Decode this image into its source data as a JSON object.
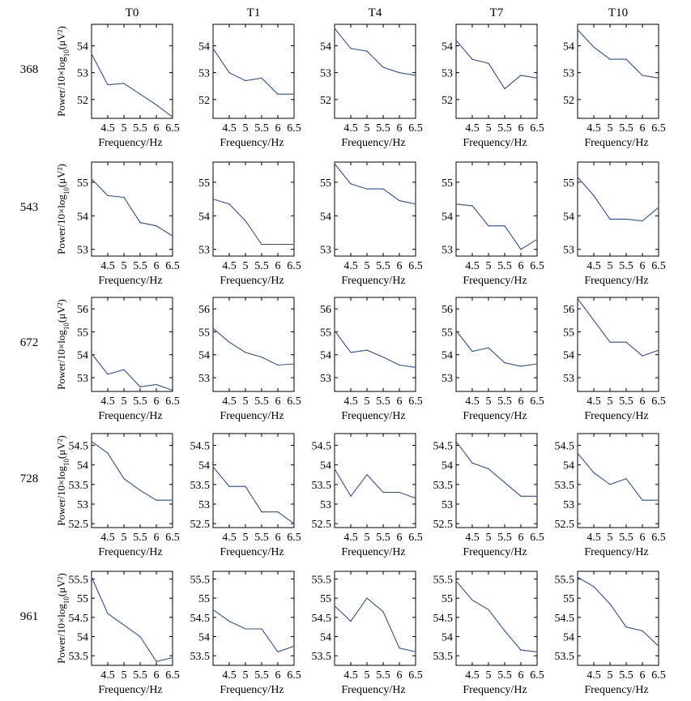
{
  "columns": [
    "T0",
    "T1",
    "T4",
    "T7",
    "T10"
  ],
  "rows": [
    "368",
    "543",
    "672",
    "728",
    "961"
  ],
  "xlabel": "Frequency/Hz",
  "ylabel": "Power/10×log10(μV²)",
  "line_color": "#2f4f8f",
  "chart_data": [
    {
      "type": "line",
      "row": "368",
      "xlim": [
        4,
        6.5
      ],
      "ylim": [
        51.3,
        54.8
      ],
      "yticks": [
        "52",
        "53",
        "54"
      ],
      "xticks": [
        "4.5",
        "5",
        "5.5",
        "6",
        "6.5"
      ],
      "xlabel": "Frequency/Hz",
      "ylabel": "Power/10×log10(μV²)",
      "x": [
        4,
        4.5,
        5,
        5.5,
        6,
        6.5
      ],
      "series": [
        {
          "name": "T0",
          "values": [
            53.7,
            52.55,
            52.6,
            52.2,
            51.8,
            51.35
          ]
        },
        {
          "name": "T1",
          "values": [
            53.9,
            53.0,
            52.7,
            52.8,
            52.2,
            52.2
          ]
        },
        {
          "name": "T4",
          "values": [
            54.65,
            53.9,
            53.8,
            53.2,
            53.0,
            52.9
          ]
        },
        {
          "name": "T7",
          "values": [
            54.2,
            53.5,
            53.35,
            52.4,
            52.9,
            52.8
          ]
        },
        {
          "name": "T10",
          "values": [
            54.6,
            53.95,
            53.5,
            53.5,
            52.9,
            52.8
          ]
        }
      ]
    },
    {
      "type": "line",
      "row": "543",
      "xlim": [
        4,
        6.5
      ],
      "ylim": [
        52.8,
        55.6
      ],
      "yticks": [
        "53",
        "54",
        "55"
      ],
      "xticks": [
        "4.5",
        "5",
        "5.5",
        "6",
        "6.5"
      ],
      "xlabel": "Frequency/Hz",
      "ylabel": "Power/10×log10(μV²)",
      "x": [
        4,
        4.5,
        5,
        5.5,
        6,
        6.5
      ],
      "series": [
        {
          "name": "T0",
          "values": [
            55.1,
            54.6,
            54.55,
            53.8,
            53.7,
            53.4
          ]
        },
        {
          "name": "T1",
          "values": [
            54.5,
            54.35,
            53.85,
            53.15,
            53.15,
            53.15
          ]
        },
        {
          "name": "T4",
          "values": [
            55.55,
            54.95,
            54.8,
            54.8,
            54.45,
            54.35
          ]
        },
        {
          "name": "T7",
          "values": [
            54.35,
            54.3,
            53.7,
            53.7,
            53.0,
            53.3
          ]
        },
        {
          "name": "T10",
          "values": [
            55.15,
            54.6,
            53.9,
            53.9,
            53.85,
            54.25
          ]
        }
      ]
    },
    {
      "type": "line",
      "row": "672",
      "xlim": [
        4,
        6.5
      ],
      "ylim": [
        52.4,
        56.5
      ],
      "yticks": [
        "53",
        "54",
        "55",
        "56"
      ],
      "xticks": [
        "4.5",
        "5",
        "5.5",
        "6",
        "6.5"
      ],
      "xlabel": "Frequency/Hz",
      "ylabel": "Power/10×log10(μV²)",
      "x": [
        4,
        4.5,
        5,
        5.5,
        6,
        6.5
      ],
      "series": [
        {
          "name": "T0",
          "values": [
            54.05,
            53.15,
            53.35,
            52.6,
            52.7,
            52.45
          ]
        },
        {
          "name": "T1",
          "values": [
            55.15,
            54.55,
            54.1,
            53.9,
            53.55,
            53.6
          ]
        },
        {
          "name": "T4",
          "values": [
            55.05,
            54.1,
            54.2,
            53.9,
            53.55,
            53.45
          ]
        },
        {
          "name": "T7",
          "values": [
            55.05,
            54.15,
            54.3,
            53.65,
            53.5,
            53.6
          ]
        },
        {
          "name": "T10",
          "values": [
            56.45,
            55.5,
            54.55,
            54.55,
            53.95,
            54.2
          ]
        }
      ]
    },
    {
      "type": "line",
      "row": "728",
      "xlim": [
        4,
        6.5
      ],
      "ylim": [
        52.4,
        54.8
      ],
      "yticks": [
        "52.5",
        "53",
        "53.5",
        "54",
        "54.5"
      ],
      "xticks": [
        "4.5",
        "5",
        "5.5",
        "6",
        "6.5"
      ],
      "xlabel": "Frequency/Hz",
      "ylabel": "Power/10×log10(μV²)",
      "x": [
        4,
        4.5,
        5,
        5.5,
        6,
        6.5
      ],
      "series": [
        {
          "name": "T0",
          "values": [
            54.6,
            54.3,
            53.65,
            53.35,
            53.1,
            53.1
          ]
        },
        {
          "name": "T1",
          "values": [
            53.95,
            53.45,
            53.45,
            52.8,
            52.8,
            52.5
          ]
        },
        {
          "name": "T4",
          "values": [
            53.9,
            53.2,
            53.75,
            53.3,
            53.3,
            53.15
          ]
        },
        {
          "name": "T7",
          "values": [
            54.6,
            54.05,
            53.9,
            53.55,
            53.2,
            53.2
          ]
        },
        {
          "name": "T10",
          "values": [
            54.3,
            53.8,
            53.5,
            53.65,
            53.1,
            53.1
          ]
        }
      ]
    },
    {
      "type": "line",
      "row": "961",
      "xlim": [
        4,
        6.5
      ],
      "ylim": [
        53.25,
        55.7
      ],
      "yticks": [
        "53.5",
        "54",
        "54.5",
        "55",
        "55.5"
      ],
      "xticks": [
        "4.5",
        "5",
        "5.5",
        "6",
        "6.5"
      ],
      "xlabel": "Frequency/Hz",
      "ylabel": "Power/10×log10(μV²)",
      "x": [
        4,
        4.5,
        5,
        5.5,
        6,
        6.5
      ],
      "series": [
        {
          "name": "T0",
          "values": [
            55.55,
            54.6,
            54.3,
            54.0,
            53.35,
            53.45
          ]
        },
        {
          "name": "T1",
          "values": [
            54.7,
            54.4,
            54.2,
            54.2,
            53.6,
            53.75
          ]
        },
        {
          "name": "T4",
          "values": [
            54.8,
            54.4,
            55.0,
            54.65,
            53.7,
            53.6
          ]
        },
        {
          "name": "T7",
          "values": [
            55.45,
            54.95,
            54.7,
            54.15,
            53.65,
            53.6
          ]
        },
        {
          "name": "T10",
          "values": [
            55.55,
            55.3,
            54.85,
            54.25,
            54.15,
            53.75
          ]
        }
      ]
    }
  ]
}
